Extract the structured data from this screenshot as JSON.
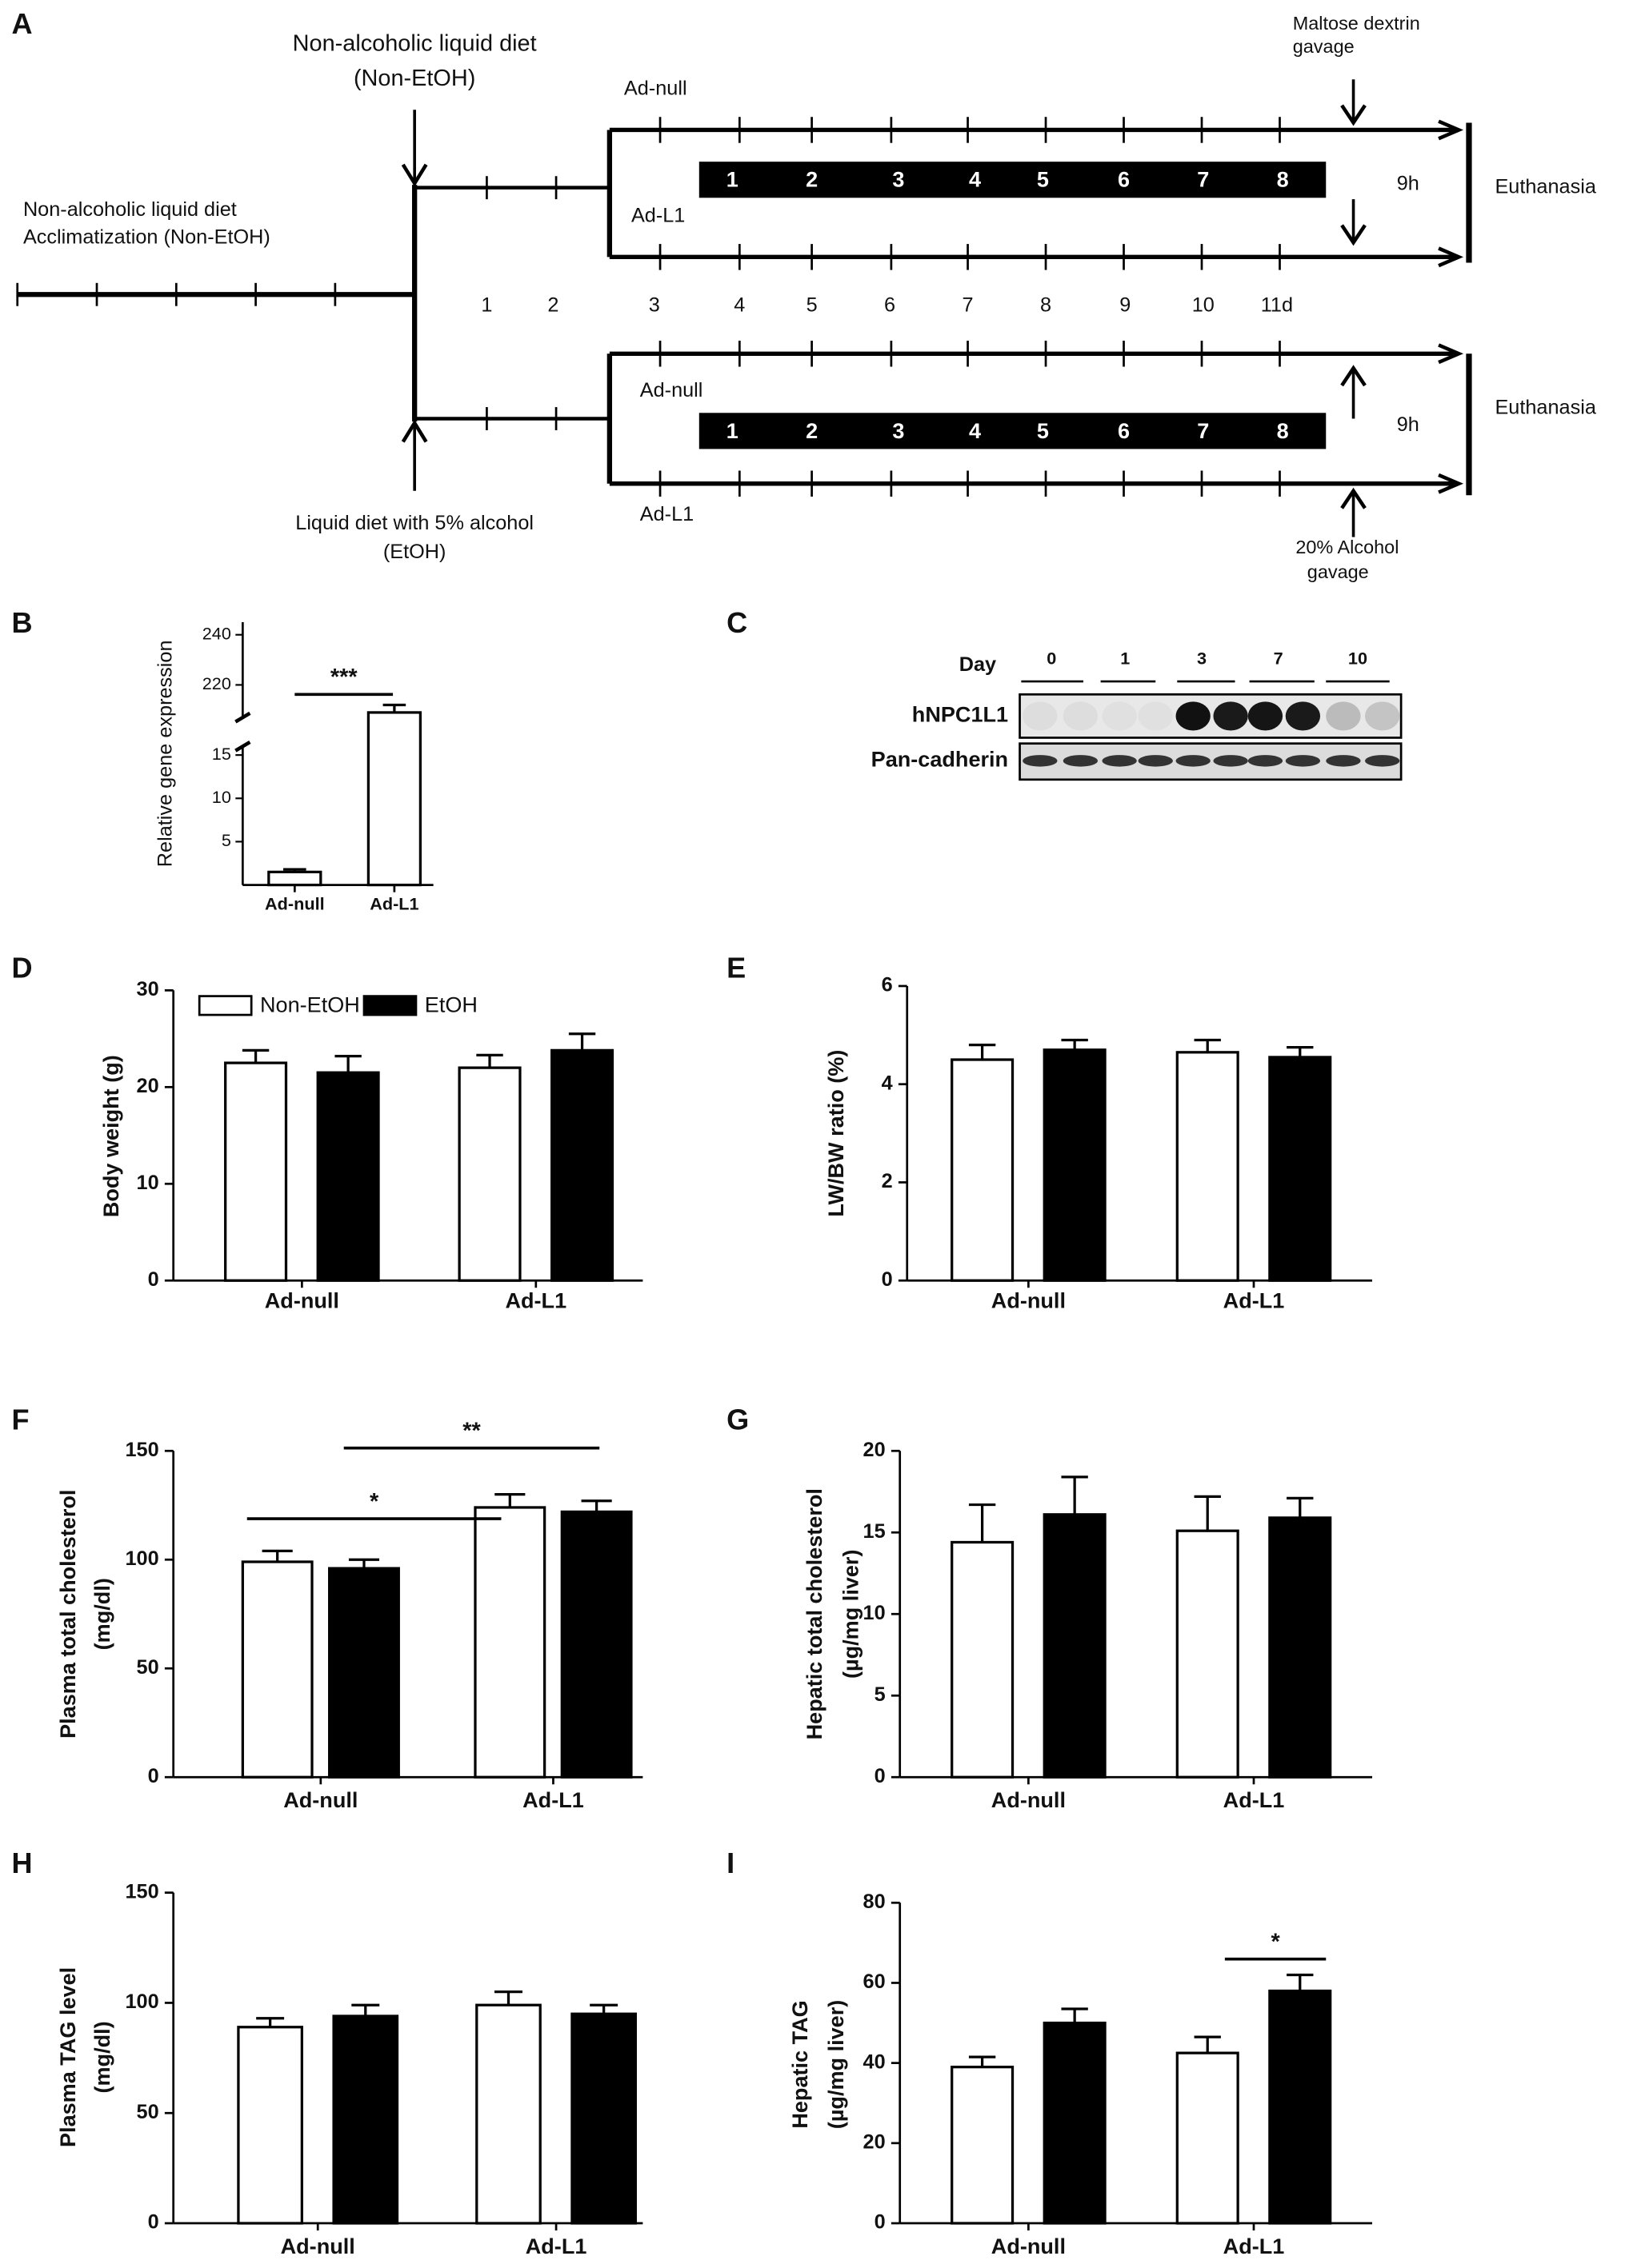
{
  "diagram": {
    "label": "A",
    "non_etoh_diet": [
      "Non-alcoholic liquid diet",
      "(Non-EtOH)"
    ],
    "etoh_diet": [
      "Liquid diet with 5% alcohol",
      "(EtOH)"
    ],
    "acclimatization": [
      "Non-alcoholic liquid diet",
      "Acclimatization (Non-EtOH)"
    ],
    "maltose_gavage": [
      "Maltose dextrin",
      "gavage"
    ],
    "alcohol_gavage": [
      "20% Alcohol",
      "gavage"
    ],
    "groups": [
      "Ad-null",
      "Ad-L1"
    ],
    "days": [
      "1",
      "2",
      "3",
      "4",
      "5",
      "6",
      "7",
      "8",
      "9",
      "10",
      "11d"
    ],
    "weeks": [
      "1",
      "2",
      "3",
      "4",
      "5",
      "6",
      "7",
      "8"
    ],
    "duration": "9h",
    "endpoint": "Euthanasia"
  },
  "blot": {
    "label": "C",
    "day_label": "Day",
    "days": [
      "0",
      "1",
      "3",
      "7",
      "10"
    ],
    "rows": [
      "hNPC1L1",
      "Pan-cadherin"
    ]
  },
  "chart_data": [
    {
      "type": "bar",
      "label": "B",
      "ylabel": [
        "Relative gene expression"
      ],
      "categories": [
        "Ad-null",
        "Ad-L1"
      ],
      "series": [
        {
          "color": "#ffffff",
          "values": [
            1.5,
            209
          ],
          "errors": [
            0.3,
            3
          ]
        }
      ],
      "y_segments": [
        {
          "ylim": [
            0,
            16
          ],
          "yticks": [
            5,
            10,
            15
          ]
        },
        {
          "ylim": [
            207,
            245
          ],
          "yticks": [
            220,
            240
          ]
        }
      ],
      "annotations": [
        "***"
      ]
    },
    {
      "type": "bar",
      "label": "D",
      "ylabel": [
        "Body weight (g)"
      ],
      "categories": [
        "Ad-null",
        "Ad-L1"
      ],
      "series": [
        {
          "name": "Non-EtOH",
          "color": "#ffffff",
          "values": [
            22.5,
            22
          ],
          "errors": [
            1.3,
            1.3
          ]
        },
        {
          "name": "EtOH",
          "color": "#000000",
          "values": [
            21.5,
            23.8
          ],
          "errors": [
            1.7,
            1.7
          ]
        }
      ],
      "ylim": [
        0,
        30
      ],
      "yticks": [
        0,
        10,
        20,
        30
      ],
      "legend": "top-left",
      "annotations": []
    },
    {
      "type": "bar",
      "label": "E",
      "ylabel": [
        "LW/BW  ratio (%)"
      ],
      "categories": [
        "Ad-null",
        "Ad-L1"
      ],
      "series": [
        {
          "color": "#ffffff",
          "values": [
            4.5,
            4.65
          ],
          "errors": [
            0.3,
            0.25
          ]
        },
        {
          "color": "#000000",
          "values": [
            4.7,
            4.55
          ],
          "errors": [
            0.2,
            0.2
          ]
        }
      ],
      "ylim": [
        0,
        6
      ],
      "yticks": [
        0,
        2,
        4,
        6
      ],
      "annotations": []
    },
    {
      "type": "bar",
      "label": "F",
      "ylabel": [
        "Plasma  total cholesterol",
        "(mg/dl)"
      ],
      "categories": [
        "Ad-null",
        "Ad-L1"
      ],
      "series": [
        {
          "color": "#ffffff",
          "values": [
            99,
            124
          ],
          "errors": [
            5,
            6
          ]
        },
        {
          "color": "#000000",
          "values": [
            96,
            122
          ],
          "errors": [
            4,
            5
          ]
        }
      ],
      "ylim": [
        0,
        150
      ],
      "yticks": [
        0,
        50,
        100,
        150
      ],
      "annotations": [
        "*",
        "**"
      ]
    },
    {
      "type": "bar",
      "label": "G",
      "ylabel": [
        "Hepatic  total cholesterol",
        "(µg/mg liver)"
      ],
      "categories": [
        "Ad-null",
        "Ad-L1"
      ],
      "series": [
        {
          "color": "#ffffff",
          "values": [
            14.4,
            15.1
          ],
          "errors": [
            2.3,
            2.1
          ]
        },
        {
          "color": "#000000",
          "values": [
            16.1,
            15.9
          ],
          "errors": [
            2.3,
            1.2
          ]
        }
      ],
      "ylim": [
        0,
        20
      ],
      "yticks": [
        0,
        5,
        10,
        15,
        20
      ],
      "annotations": []
    },
    {
      "type": "bar",
      "label": "H",
      "ylabel": [
        "Plasma TAG  level",
        "(mg/dl)"
      ],
      "categories": [
        "Ad-null",
        "Ad-L1"
      ],
      "series": [
        {
          "color": "#ffffff",
          "values": [
            89,
            99
          ],
          "errors": [
            4,
            6
          ]
        },
        {
          "color": "#000000",
          "values": [
            94,
            95
          ],
          "errors": [
            5,
            4
          ]
        }
      ],
      "ylim": [
        0,
        150
      ],
      "yticks": [
        0,
        50,
        100,
        150
      ],
      "annotations": []
    },
    {
      "type": "bar",
      "label": "I",
      "ylabel": [
        "Hepatic TAG",
        "(µg/mg liver)"
      ],
      "categories": [
        "Ad-null",
        "Ad-L1"
      ],
      "series": [
        {
          "color": "#ffffff",
          "values": [
            39,
            42.5
          ],
          "errors": [
            2.5,
            4
          ]
        },
        {
          "color": "#000000",
          "values": [
            50,
            58
          ],
          "errors": [
            3.5,
            4
          ]
        }
      ],
      "ylim": [
        0,
        80
      ],
      "yticks": [
        0,
        20,
        40,
        60,
        80
      ],
      "annotations": [
        "*"
      ]
    }
  ]
}
